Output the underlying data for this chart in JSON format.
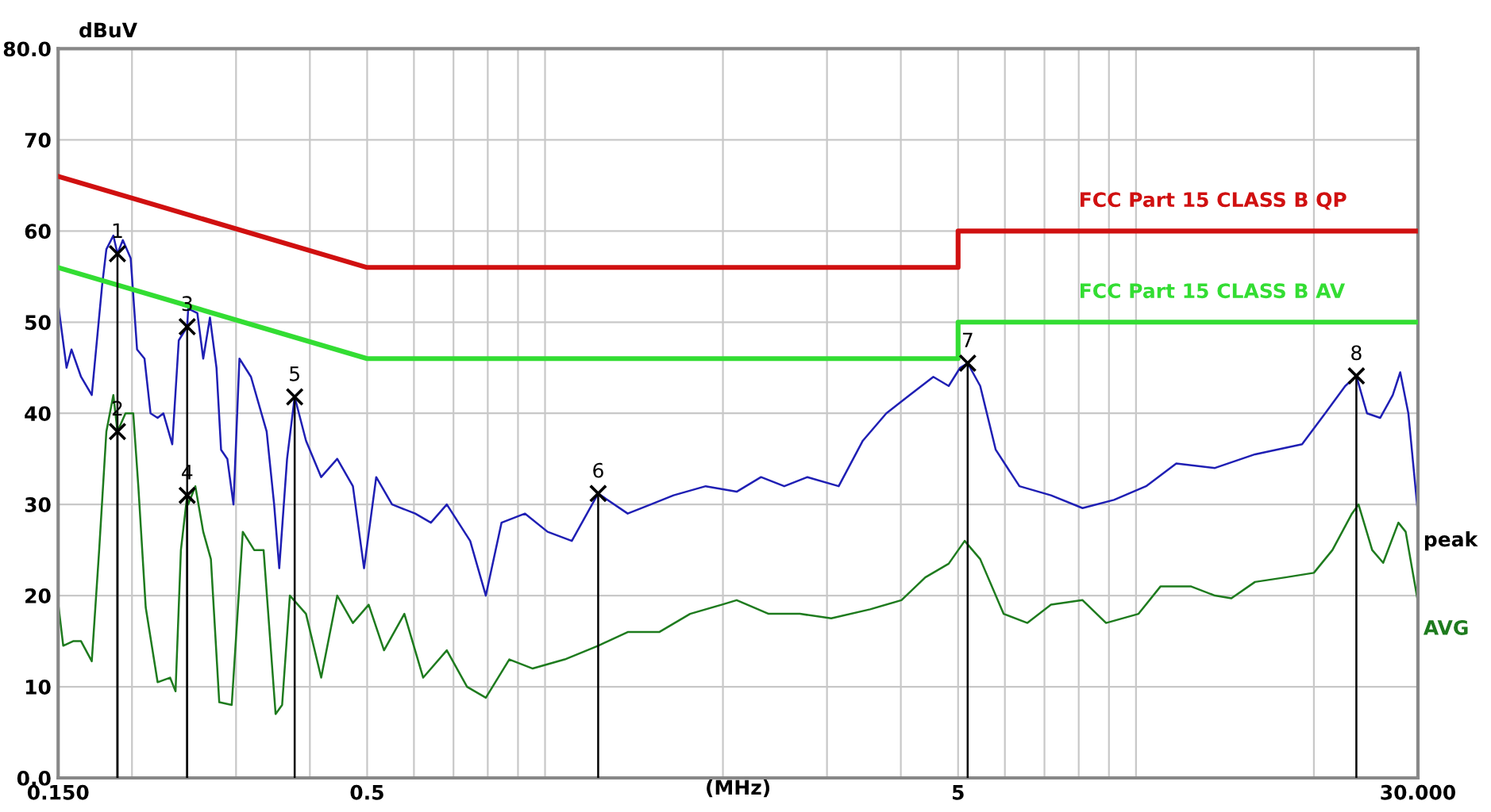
{
  "chart_data": {
    "type": "line",
    "xlabel": "(MHz)",
    "ylabel": "dBuV",
    "log": "x",
    "grid": true,
    "legend": false,
    "line_style": "solid",
    "marker": "none",
    "xlim": [
      0.15,
      30
    ],
    "ylim": [
      0,
      80
    ],
    "xticks": [
      {
        "value": 0.15,
        "label": "0.150"
      },
      {
        "value": 0.2,
        "label": null
      },
      {
        "value": 0.3,
        "label": null
      },
      {
        "value": 0.4,
        "label": null
      },
      0.5,
      {
        "value": 0.6,
        "label": null
      },
      {
        "value": 0.7,
        "label": null
      },
      {
        "value": 0.8,
        "label": null
      },
      {
        "value": 0.9,
        "label": null
      },
      {
        "value": 1,
        "label": null
      },
      {
        "value": 2,
        "label": null
      },
      {
        "value": 3,
        "label": null
      },
      {
        "value": 4,
        "label": null
      },
      5,
      {
        "value": 6,
        "label": null
      },
      {
        "value": 7,
        "label": null
      },
      {
        "value": 8,
        "label": null
      },
      {
        "value": 9,
        "label": null
      },
      {
        "value": 10,
        "label": null
      },
      {
        "value": 20,
        "label": null
      },
      {
        "value": 30,
        "label": "30.000"
      }
    ],
    "yticks": [
      {
        "value": 0,
        "label": "0.0"
      },
      10,
      20,
      30,
      40,
      50,
      60,
      70,
      {
        "value": 80,
        "label": "80.0"
      }
    ],
    "series": [
      {
        "name": "FCC Part 15 CLASS B QP",
        "color": "#d01010",
        "x": [
          0.15,
          0.5,
          5,
          5,
          30
        ],
        "values": [
          66,
          56,
          56,
          60,
          60
        ]
      },
      {
        "name": "FCC Part 15 CLASS B AV",
        "color": "#33dd33",
        "x": [
          0.15,
          0.5,
          5,
          5,
          30
        ],
        "values": [
          56,
          46,
          46,
          50,
          50
        ]
      },
      {
        "name": "peak",
        "color": "#1f1fb4",
        "x": [
          0.15,
          0.155,
          0.158,
          0.164,
          0.171,
          0.178,
          0.181,
          0.186,
          0.189,
          0.193,
          0.199,
          0.204,
          0.21,
          0.215,
          0.221,
          0.226,
          0.234,
          0.24,
          0.248,
          0.249,
          0.258,
          0.264,
          0.271,
          0.278,
          0.283,
          0.29,
          0.297,
          0.304,
          0.318,
          0.338,
          0.348,
          0.355,
          0.366,
          0.377,
          0.394,
          0.418,
          0.445,
          0.473,
          0.494,
          0.518,
          0.551,
          0.603,
          0.641,
          0.682,
          0.747,
          0.794,
          0.844,
          0.925,
          1.01,
          1.11,
          1.23,
          1.38,
          1.51,
          1.65,
          1.87,
          2.11,
          2.32,
          2.54,
          2.78,
          3.14,
          3.45,
          3.78,
          4.14,
          4.54,
          4.82,
          5.04,
          5.19,
          5.45,
          5.79,
          6.35,
          7.18,
          8.12,
          9.18,
          10.4,
          11.7,
          13.6,
          15.9,
          19.1,
          20.9,
          22.6,
          23.6,
          24.6,
          25.9,
          27.2,
          28.0,
          28.9,
          30.0
        ],
        "values": [
          52,
          45,
          47,
          44,
          42,
          54,
          58,
          59.5,
          57.5,
          59,
          57,
          47,
          46,
          40,
          39.5,
          40,
          36.6,
          48,
          49.5,
          51.5,
          51,
          46,
          50.5,
          45,
          36,
          35,
          30,
          46,
          44,
          38,
          30,
          23,
          35,
          41.8,
          37,
          33,
          35,
          32,
          23,
          33,
          30,
          29,
          28,
          30,
          26,
          20,
          28,
          29,
          27,
          26,
          31.2,
          29,
          30,
          31,
          32,
          31.4,
          33,
          32,
          33,
          32,
          37,
          40,
          42,
          44,
          43,
          45,
          45.5,
          43,
          36,
          32,
          31,
          29.6,
          30.5,
          32,
          34.5,
          34,
          35.5,
          36.6,
          40,
          43,
          44.1,
          40,
          39.5,
          42,
          44.5,
          40,
          29
        ]
      },
      {
        "name": "AVG",
        "color": "#1e7b1e",
        "x": [
          0.15,
          0.153,
          0.159,
          0.164,
          0.171,
          0.176,
          0.181,
          0.186,
          0.189,
          0.195,
          0.201,
          0.205,
          0.211,
          0.221,
          0.232,
          0.237,
          0.242,
          0.248,
          0.249,
          0.256,
          0.264,
          0.272,
          0.281,
          0.295,
          0.308,
          0.322,
          0.334,
          0.35,
          0.359,
          0.37,
          0.394,
          0.418,
          0.445,
          0.473,
          0.503,
          0.534,
          0.578,
          0.622,
          0.682,
          0.738,
          0.794,
          0.87,
          0.953,
          1.08,
          1.23,
          1.38,
          1.56,
          1.76,
          1.99,
          2.11,
          2.39,
          2.7,
          3.05,
          3.55,
          4.01,
          4.4,
          4.82,
          5.13,
          5.45,
          5.97,
          6.55,
          7.18,
          8.12,
          8.9,
          10.1,
          11.0,
          12.4,
          13.6,
          14.5,
          15.9,
          17.9,
          20.0,
          21.5,
          23.2,
          23.8,
          25.1,
          26.2,
          27.8,
          28.6,
          30.0
        ],
        "values": [
          19.2,
          14.5,
          15,
          15,
          12.8,
          25,
          38,
          42,
          38,
          40,
          40,
          32,
          18.7,
          10.5,
          11,
          9.5,
          25,
          31,
          30,
          32,
          27,
          24,
          8.3,
          8,
          27,
          25,
          25,
          7,
          8,
          20,
          18,
          11,
          20,
          17,
          19,
          14,
          18,
          11,
          14,
          10,
          8.8,
          13,
          12,
          13,
          14.5,
          16,
          16,
          18,
          19,
          19.5,
          18,
          18,
          17.5,
          18.5,
          19.5,
          22,
          23.5,
          26,
          24,
          18,
          17,
          19,
          19.5,
          17,
          18,
          21,
          21,
          20,
          19.7,
          21.5,
          22,
          22.5,
          25,
          29,
          30,
          25,
          23.6,
          28,
          27,
          19.3
        ]
      }
    ],
    "annotations": [
      {
        "text": "1",
        "x": 0.189,
        "y": 57.5
      },
      {
        "text": "2",
        "x": 0.189,
        "y": 38
      },
      {
        "text": "3",
        "x": 0.248,
        "y": 49.5
      },
      {
        "text": "4",
        "x": 0.248,
        "y": 31
      },
      {
        "text": "5",
        "x": 0.377,
        "y": 41.8
      },
      {
        "text": "6",
        "x": 1.23,
        "y": 31.2
      },
      {
        "text": "7",
        "x": 5.19,
        "y": 45.5
      },
      {
        "text": "8",
        "x": 23.6,
        "y": 44.1
      }
    ]
  }
}
